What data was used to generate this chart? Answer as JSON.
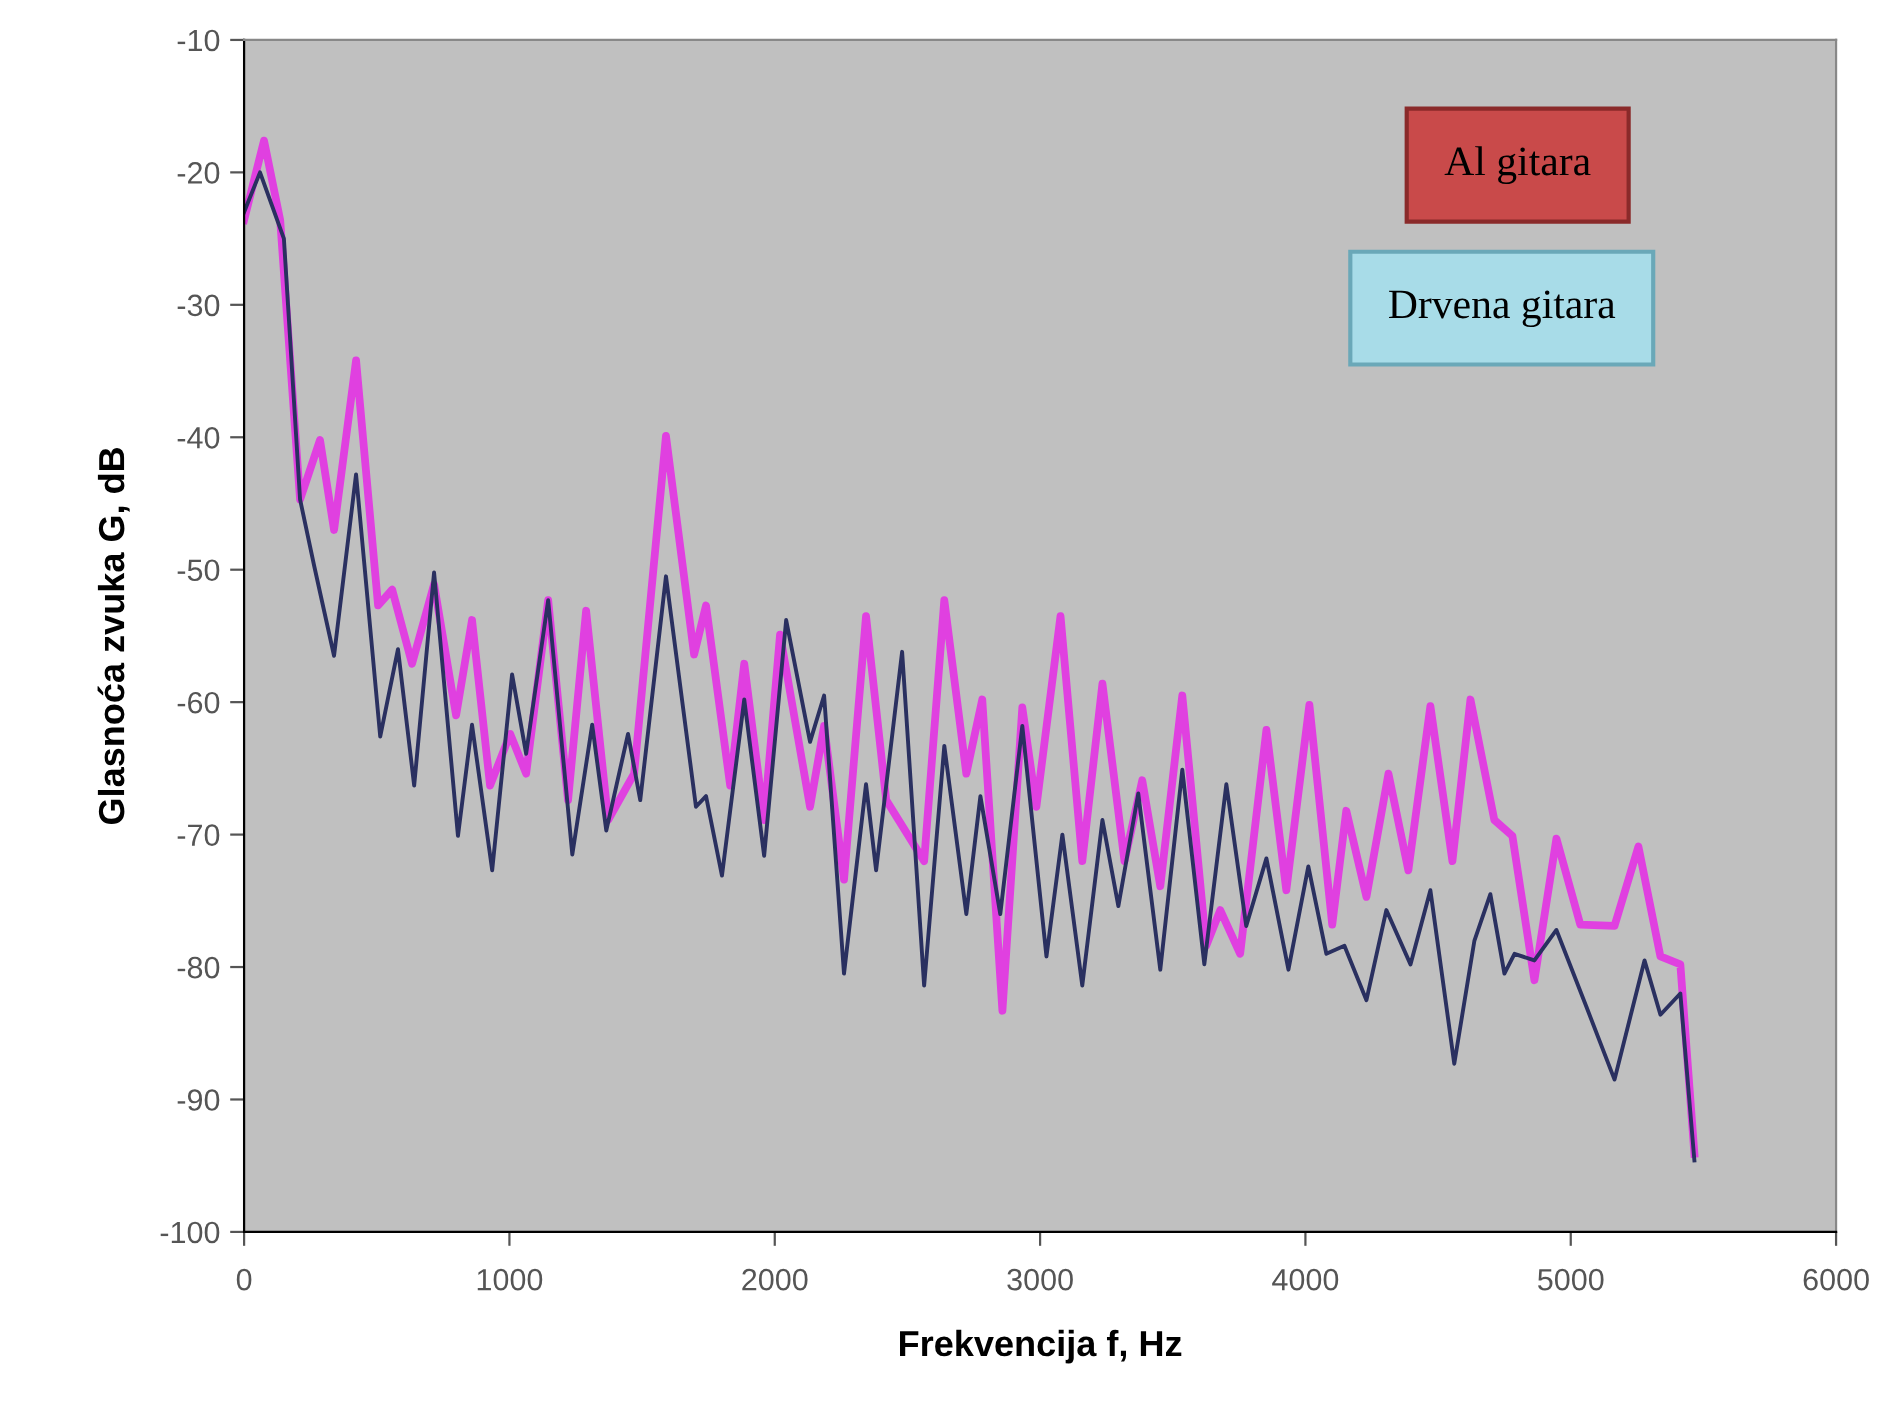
{
  "chart_data": {
    "type": "line",
    "xlabel": "Frekvencija f, Hz",
    "ylabel": "Glasnoća zvuka G, dB",
    "xlim": [
      0,
      6000
    ],
    "ylim": [
      -100,
      -10
    ],
    "xticks": [
      0,
      1000,
      2000,
      3000,
      4000,
      5000,
      6000
    ],
    "yticks": [
      -100,
      -90,
      -80,
      -70,
      -60,
      -50,
      -40,
      -30,
      -20,
      -10
    ],
    "grid": false,
    "marker": "none",
    "line_style": "solid",
    "annotations": [
      "Al gitara",
      "Drvena gitara"
    ],
    "series": [
      {
        "color": "#e040e0",
        "x": [
          0,
          75,
          136,
          211,
          286,
          339,
          422,
          505,
          558,
          633,
          716,
          799,
          859,
          927,
          1003,
          1063,
          1146,
          1221,
          1289,
          1372,
          1470,
          1590,
          1696,
          1741,
          1832,
          1885,
          1960,
          2020,
          2133,
          2186,
          2261,
          2344,
          2420,
          2563,
          2639,
          2722,
          2782,
          2858,
          2933,
          2986,
          3077,
          3159,
          3235,
          3318,
          3385,
          3453,
          3536,
          3626,
          3679,
          3754,
          3853,
          3928,
          4015,
          4101,
          4154,
          4230,
          4313,
          4388,
          4471,
          4554,
          4622,
          4712,
          4780,
          4863,
          4946,
          5036,
          5165,
          5255,
          5338,
          5413,
          5466
        ],
        "values": [
          -23.6,
          -17.6,
          -23.6,
          -44.7,
          -40.2,
          -47,
          -34.2,
          -52.7,
          -51.5,
          -57.1,
          -51.1,
          -61,
          -53.8,
          -66.3,
          -62.4,
          -65.4,
          -52.3,
          -67.4,
          -53.1,
          -68.9,
          -65.4,
          -39.9,
          -56.4,
          -52.7,
          -66.3,
          -57.1,
          -68.9,
          -54.9,
          -67.9,
          -61.8,
          -73.4,
          -53.5,
          -67.4,
          -72,
          -52.3,
          -65.4,
          -59.8,
          -83.3,
          -60.4,
          -67.9,
          -53.5,
          -72,
          -58.6,
          -72,
          -65.9,
          -73.9,
          -59.5,
          -78.4,
          -75.7,
          -79,
          -62.1,
          -74.2,
          -60.2,
          -76.8,
          -68.2,
          -74.7,
          -65.4,
          -72.7,
          -60.3,
          -72,
          -59.8,
          -68.9,
          -70.1,
          -81,
          -70.3,
          -76.8,
          -76.9,
          -70.9,
          -79.2,
          -79.8,
          -94.1
        ]
      },
      {
        "color": "#2a3060",
        "x": [
          0,
          60,
          150,
          211,
          264,
          339,
          422,
          513,
          580,
          641,
          716,
          806,
          859,
          935,
          1010,
          1063,
          1146,
          1237,
          1312,
          1365,
          1447,
          1493,
          1590,
          1703,
          1741,
          1801,
          1885,
          1960,
          2043,
          2133,
          2186,
          2261,
          2344,
          2382,
          2480,
          2563,
          2639,
          2722,
          2775,
          2850,
          2933,
          3024,
          3084,
          3159,
          3235,
          3295,
          3370,
          3453,
          3536,
          3619,
          3702,
          3777,
          3853,
          3936,
          4011,
          4079,
          4147,
          4230,
          4305,
          4396,
          4471,
          4561,
          4637,
          4697,
          4750,
          4788,
          4863,
          4946,
          5059,
          5165,
          5278,
          5338,
          5413,
          5466
        ],
        "values": [
          -23,
          -20,
          -25,
          -44.7,
          -49.7,
          -56.5,
          -42.8,
          -62.6,
          -56,
          -66.3,
          -50.2,
          -70.1,
          -61.7,
          -72.7,
          -57.9,
          -63.9,
          -52.3,
          -71.5,
          -61.7,
          -69.7,
          -62.4,
          -67.4,
          -50.5,
          -67.9,
          -67.1,
          -73.1,
          -59.8,
          -71.6,
          -53.8,
          -63,
          -59.5,
          -80.5,
          -66.2,
          -72.7,
          -56.2,
          -81.4,
          -63.3,
          -76,
          -67.1,
          -76,
          -61.8,
          -79.2,
          -70,
          -81.4,
          -68.9,
          -75.4,
          -66.9,
          -80.2,
          -65.1,
          -79.8,
          -66.2,
          -76.9,
          -71.8,
          -80.2,
          -72.4,
          -79,
          -78.4,
          -82.5,
          -75.7,
          -79.8,
          -74.2,
          -87.3,
          -78,
          -74.5,
          -80.5,
          -79,
          -79.5,
          -77.2,
          -83,
          -88.5,
          -79.5,
          -83.6,
          -82,
          -94.6
        ]
      }
    ]
  }
}
